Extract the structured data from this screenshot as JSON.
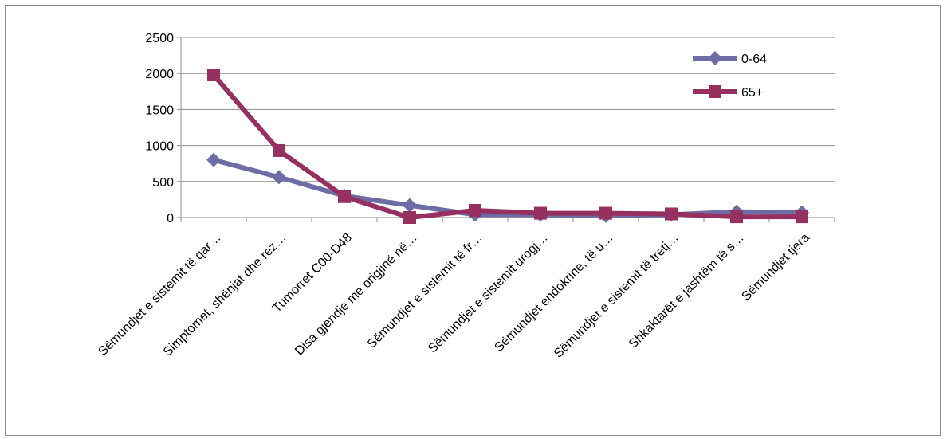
{
  "chart_data": {
    "type": "line",
    "categories": [
      "Sëmundjet e sistemit të qar…",
      "Simptomet, shënjat dhe rez…",
      "Tumorret C00-D48",
      "Disa gjendje me origjinë në…",
      "Sëmundjet e sistemit të fr…",
      "Sëmundjet e sistemit urogj…",
      "Sëmundjet endokrine, të u…",
      "Sëmundjet e sistemit të tretj…",
      "Shkaktarët e jashtëm të s…",
      "Sëmundjet tjera"
    ],
    "series": [
      {
        "name": "0-64",
        "color": "#6e6ca4",
        "marker": "diamond",
        "values": [
          800,
          560,
          300,
          170,
          40,
          40,
          25,
          40,
          80,
          70
        ]
      },
      {
        "name": "65+",
        "color": "#953060",
        "marker": "square",
        "values": [
          1980,
          930,
          290,
          0,
          100,
          60,
          60,
          50,
          10,
          10
        ]
      }
    ],
    "yticks": [
      "2500",
      "2000",
      "1500",
      "1000",
      "500",
      "0"
    ],
    "ylim": [
      0,
      2500
    ],
    "grid": true,
    "legend": "top-right"
  }
}
